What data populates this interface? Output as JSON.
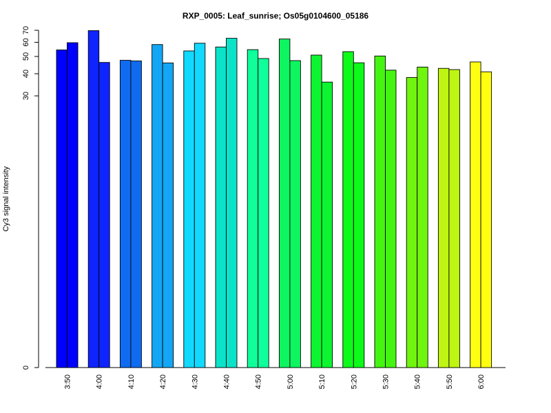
{
  "chart_data": {
    "type": "bar",
    "title": "RXP_0005: Leaf_sunrise; Os05g0104600_05186",
    "xlabel": "",
    "ylabel": "Cy3 signal intensity",
    "categories": [
      "3:50",
      "4:00",
      "4:10",
      "4:20",
      "4:30",
      "4:40",
      "4:50",
      "5:00",
      "5:10",
      "5:20",
      "5:30",
      "5:40",
      "5:50",
      "6:00"
    ],
    "series": [
      {
        "values": [
          54.4,
          69.7,
          47.6,
          58.3,
          53.7,
          56.5,
          54.6,
          62.6,
          50.9,
          53.2,
          50.3,
          38.1,
          42.9,
          46.6
        ]
      },
      {
        "values": [
          59.7,
          46.3,
          47.2,
          46.0,
          59.3,
          63.2,
          48.7,
          47.4,
          35.9,
          46.1,
          41.9,
          43.6,
          42.2,
          41.0
        ]
      }
    ],
    "colors": [
      "#0000FF",
      "#0F24FF",
      "#0F6BF0",
      "#12A6F5",
      "#12D9FF",
      "#0AE3C8",
      "#0FFF9A",
      "#0DF560",
      "#0DF530",
      "#0DFA1A",
      "#45F512",
      "#70F50F",
      "#BFF512",
      "#FFFF12"
    ],
    "y_ticks": [
      0,
      30,
      40,
      50,
      60,
      70
    ],
    "y_scale": "log",
    "ylim": [
      0,
      70
    ],
    "grid": false,
    "legend": "none"
  }
}
